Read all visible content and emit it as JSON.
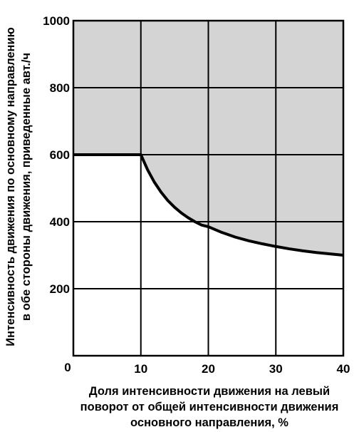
{
  "chart_data": {
    "type": "area",
    "title": "",
    "xlabel": [
      "Доля интенсивности движения на левый",
      "поворот от общей интенсивности движения",
      "основного направления, %"
    ],
    "ylabel": [
      "Интенсивность движения по основному направлению",
      "в обе стороны движения, приведенные авт./ч"
    ],
    "xlim": [
      0,
      40
    ],
    "ylim": [
      0,
      1000
    ],
    "x_ticks": [
      "0",
      "10",
      "20",
      "30",
      "40"
    ],
    "y_ticks": [
      "200",
      "400",
      "600",
      "800",
      "1000"
    ],
    "grid": true,
    "shaded_region": "above curve",
    "colors": {
      "shade": "#d4d4d4",
      "line": "#000000",
      "grid": "#000000"
    },
    "series": [
      {
        "x": [
          0,
          10,
          11,
          12,
          13,
          14,
          15,
          16,
          17,
          18,
          19,
          20,
          22,
          24,
          26,
          28,
          30,
          32,
          34,
          36,
          38,
          40
        ],
        "y": [
          600,
          600,
          555,
          518,
          488,
          463,
          443,
          426,
          412,
          400,
          390,
          385,
          368,
          354,
          343,
          334,
          326,
          319,
          313,
          308,
          304,
          300
        ]
      }
    ]
  }
}
